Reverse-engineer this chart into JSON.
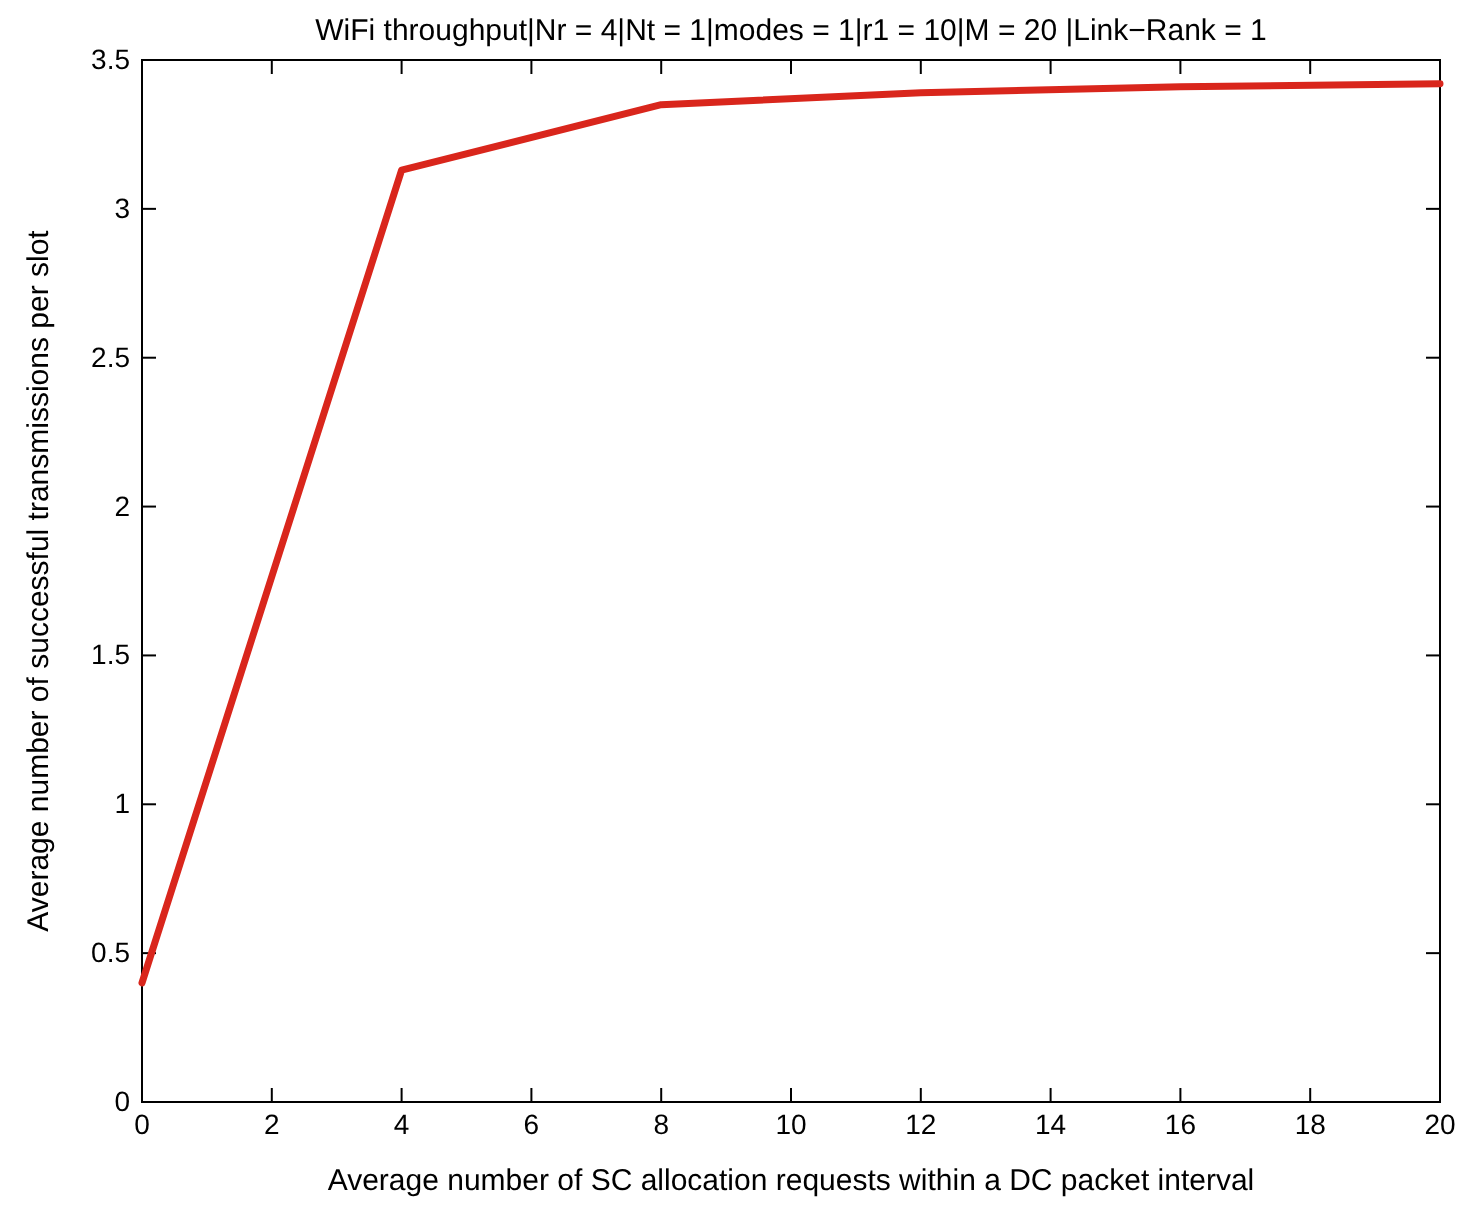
{
  "chart_data": {
    "type": "line",
    "title": "WiFi throughput|Nr = 4|Nt = 1|modes = 1|r1 = 10|M = 20 |Link−Rank = 1",
    "xlabel": "Average number of SC allocation requests within a DC packet interval",
    "ylabel": "Average number of successful transmissions per slot",
    "x": [
      0,
      4,
      8,
      12,
      16,
      20
    ],
    "series": [
      {
        "color": "#d9261c",
        "values": [
          0.4,
          3.13,
          3.35,
          3.39,
          3.41,
          3.42
        ]
      }
    ],
    "xlim": [
      0,
      20
    ],
    "xticks": [
      0,
      2,
      4,
      6,
      8,
      10,
      12,
      14,
      16,
      18,
      20
    ],
    "ylim": [
      0,
      3.5
    ],
    "yticks": [
      0,
      0.5,
      1,
      1.5,
      2,
      2.5,
      3,
      3.5
    ],
    "grid": false,
    "marker": "none",
    "line_style": "solid"
  }
}
